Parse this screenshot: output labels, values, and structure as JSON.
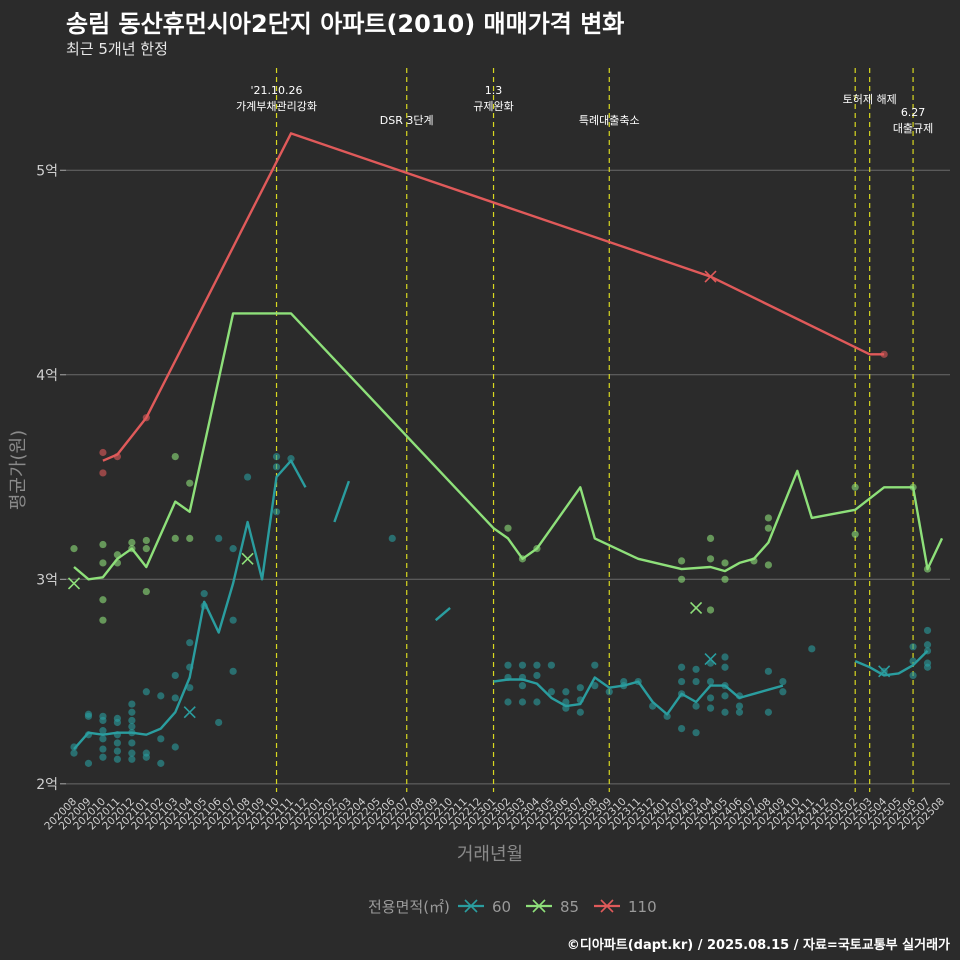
{
  "header": {
    "title": "송림 동산휴먼시아2단지 아파트(2010) 매매가격 변화",
    "subtitle": "최근 5개년 한정"
  },
  "caption": "©디아파트(dapt.kr) / 2025.08.15 / 자료=국토교통부 실거래가",
  "colors": {
    "s60": "#2a9d9f",
    "s85": "#8ee07a",
    "s110": "#e05a5a",
    "annotation": "#d8d820",
    "grid": "#6a6a6a",
    "background": "#2b2b2b"
  },
  "chart_data": {
    "type": "line",
    "xlabel": "거래년월",
    "ylabel": "평균가(원)",
    "x_categories": [
      "202008",
      "202009",
      "202010",
      "202011",
      "202012",
      "202101",
      "202102",
      "202103",
      "202104",
      "202105",
      "202106",
      "202107",
      "202108",
      "202109",
      "202110",
      "202111",
      "202112",
      "202201",
      "202202",
      "202203",
      "202204",
      "202205",
      "202206",
      "202207",
      "202208",
      "202209",
      "202210",
      "202211",
      "202212",
      "202301",
      "202302",
      "202303",
      "202304",
      "202305",
      "202306",
      "202307",
      "202308",
      "202309",
      "202310",
      "202311",
      "202312",
      "202401",
      "202402",
      "202403",
      "202404",
      "202405",
      "202406",
      "202407",
      "202408",
      "202409",
      "202410",
      "202411",
      "202412",
      "202501",
      "202502",
      "202503",
      "202504",
      "202505",
      "202506",
      "202507",
      "202508"
    ],
    "y_ticks": [
      {
        "value": 2,
        "label": "2억"
      },
      {
        "value": 3,
        "label": "3억"
      },
      {
        "value": 4,
        "label": "4억"
      },
      {
        "value": 5,
        "label": "5억"
      }
    ],
    "ylim": [
      1.96,
      5.5
    ],
    "legend": {
      "title": "전용면적(㎡)",
      "position": "bottom",
      "items": [
        "60",
        "85",
        "110"
      ]
    },
    "annotations": [
      {
        "x": "202110",
        "lines": [
          "'21.10.26",
          "가계부채관리강화"
        ]
      },
      {
        "x": "202207",
        "lines": [
          "DSR 3단계"
        ]
      },
      {
        "x": "202301",
        "lines": [
          "1.3",
          "규제완화"
        ]
      },
      {
        "x": "202309",
        "lines": [
          "특례대출축소"
        ]
      },
      {
        "x": "202502",
        "lines": []
      },
      {
        "x": "202503",
        "lines": [
          "토허제 해제"
        ]
      },
      {
        "x": "202506",
        "lines": [
          "6.27",
          "대출규제"
        ]
      }
    ],
    "series": [
      {
        "name": "60",
        "segments": [
          [
            [
              "202008",
              2.17
            ],
            [
              "202009",
              2.25
            ],
            [
              "202010",
              2.24
            ],
            [
              "202011",
              2.25
            ],
            [
              "202012",
              2.25
            ],
            [
              "202101",
              2.24
            ],
            [
              "202102",
              2.27
            ],
            [
              "202103",
              2.35
            ],
            [
              "202104",
              2.52
            ],
            [
              "202105",
              2.89
            ],
            [
              "202106",
              2.74
            ],
            [
              "202107",
              2.98
            ],
            [
              "202108",
              3.28
            ],
            [
              "202109",
              3.0
            ],
            [
              "202110",
              3.5
            ],
            [
              "202111",
              3.58
            ],
            [
              "202112",
              3.45
            ]
          ],
          [
            [
              "202202",
              3.28
            ],
            [
              "202203",
              3.48
            ]
          ],
          [
            [
              "202209",
              2.8
            ],
            [
              "202210",
              2.86
            ]
          ],
          [
            [
              "202301",
              2.5
            ],
            [
              "202302",
              2.51
            ],
            [
              "202303",
              2.51
            ],
            [
              "202304",
              2.49
            ],
            [
              "202305",
              2.42
            ],
            [
              "202306",
              2.38
            ],
            [
              "202307",
              2.39
            ],
            [
              "202308",
              2.52
            ],
            [
              "202309",
              2.47
            ],
            [
              "202310",
              2.48
            ],
            [
              "202311",
              2.5
            ],
            [
              "202312",
              2.4
            ],
            [
              "202401",
              2.34
            ],
            [
              "202402",
              2.44
            ],
            [
              "202403",
              2.4
            ],
            [
              "202404",
              2.48
            ],
            [
              "202405",
              2.48
            ],
            [
              "202406",
              2.42
            ],
            [
              "202407",
              2.44
            ],
            [
              "202408",
              2.46
            ],
            [
              "202409",
              2.48
            ]
          ],
          [
            [
              "202502",
              2.6
            ],
            [
              "202503",
              2.57
            ],
            [
              "202504",
              2.53
            ],
            [
              "202505",
              2.54
            ],
            [
              "202506",
              2.58
            ],
            [
              "202507",
              2.65
            ]
          ]
        ],
        "points": [
          [
            "202008",
            2.15
          ],
          [
            "202008",
            2.18
          ],
          [
            "202009",
            2.1
          ],
          [
            "202009",
            2.24
          ],
          [
            "202009",
            2.33
          ],
          [
            "202009",
            2.34
          ],
          [
            "202010",
            2.13
          ],
          [
            "202010",
            2.17
          ],
          [
            "202010",
            2.22
          ],
          [
            "202010",
            2.26
          ],
          [
            "202010",
            2.31
          ],
          [
            "202010",
            2.33
          ],
          [
            "202011",
            2.12
          ],
          [
            "202011",
            2.16
          ],
          [
            "202011",
            2.2
          ],
          [
            "202011",
            2.24
          ],
          [
            "202011",
            2.3
          ],
          [
            "202011",
            2.32
          ],
          [
            "202012",
            2.12
          ],
          [
            "202012",
            2.15
          ],
          [
            "202012",
            2.2
          ],
          [
            "202012",
            2.25
          ],
          [
            "202012",
            2.28
          ],
          [
            "202012",
            2.31
          ],
          [
            "202012",
            2.35
          ],
          [
            "202012",
            2.39
          ],
          [
            "202101",
            2.13
          ],
          [
            "202101",
            2.15
          ],
          [
            "202101",
            2.45
          ],
          [
            "202102",
            2.1
          ],
          [
            "202102",
            2.22
          ],
          [
            "202102",
            2.43
          ],
          [
            "202103",
            2.18
          ],
          [
            "202103",
            2.42
          ],
          [
            "202103",
            2.53
          ],
          [
            "202104",
            2.47
          ],
          [
            "202104",
            2.57
          ],
          [
            "202104",
            2.69
          ],
          [
            "202105",
            2.87
          ],
          [
            "202105",
            2.93
          ],
          [
            "202106",
            2.3
          ],
          [
            "202106",
            3.2
          ],
          [
            "202107",
            2.55
          ],
          [
            "202107",
            2.8
          ],
          [
            "202107",
            3.15
          ],
          [
            "202108",
            3.5
          ],
          [
            "202110",
            3.33
          ],
          [
            "202110",
            3.55
          ],
          [
            "202110",
            3.6
          ],
          [
            "202111",
            3.59
          ],
          [
            "202206",
            3.2
          ],
          [
            "202302",
            2.4
          ],
          [
            "202302",
            2.52
          ],
          [
            "202302",
            2.58
          ],
          [
            "202303",
            2.4
          ],
          [
            "202303",
            2.48
          ],
          [
            "202303",
            2.52
          ],
          [
            "202303",
            2.58
          ],
          [
            "202304",
            2.4
          ],
          [
            "202304",
            2.53
          ],
          [
            "202304",
            2.58
          ],
          [
            "202305",
            2.45
          ],
          [
            "202305",
            2.58
          ],
          [
            "202306",
            2.37
          ],
          [
            "202306",
            2.4
          ],
          [
            "202306",
            2.45
          ],
          [
            "202307",
            2.35
          ],
          [
            "202307",
            2.41
          ],
          [
            "202307",
            2.47
          ],
          [
            "202308",
            2.48
          ],
          [
            "202308",
            2.58
          ],
          [
            "202309",
            2.45
          ],
          [
            "202310",
            2.48
          ],
          [
            "202310",
            2.5
          ],
          [
            "202311",
            2.5
          ],
          [
            "202312",
            2.38
          ],
          [
            "202401",
            2.33
          ],
          [
            "202402",
            2.27
          ],
          [
            "202402",
            2.44
          ],
          [
            "202402",
            2.5
          ],
          [
            "202402",
            2.57
          ],
          [
            "202403",
            2.25
          ],
          [
            "202403",
            2.38
          ],
          [
            "202403",
            2.5
          ],
          [
            "202403",
            2.56
          ],
          [
            "202404",
            2.37
          ],
          [
            "202404",
            2.42
          ],
          [
            "202404",
            2.5
          ],
          [
            "202404",
            2.59
          ],
          [
            "202405",
            2.35
          ],
          [
            "202405",
            2.43
          ],
          [
            "202405",
            2.48
          ],
          [
            "202405",
            2.57
          ],
          [
            "202405",
            2.62
          ],
          [
            "202406",
            2.35
          ],
          [
            "202406",
            2.38
          ],
          [
            "202406",
            2.43
          ],
          [
            "202408",
            2.35
          ],
          [
            "202408",
            2.55
          ],
          [
            "202409",
            2.45
          ],
          [
            "202409",
            2.5
          ],
          [
            "202411",
            2.66
          ],
          [
            "202504",
            2.55
          ],
          [
            "202506",
            2.53
          ],
          [
            "202506",
            2.6
          ],
          [
            "202506",
            2.67
          ],
          [
            "202507",
            2.57
          ],
          [
            "202507",
            2.59
          ],
          [
            "202507",
            2.65
          ],
          [
            "202507",
            2.68
          ],
          [
            "202507",
            2.75
          ]
        ],
        "cross_points": [
          [
            "202104",
            2.35
          ],
          [
            "202404",
            2.61
          ],
          [
            "202504",
            2.55
          ]
        ]
      },
      {
        "name": "85",
        "segments": [
          [
            [
              "202008",
              3.06
            ],
            [
              "202009",
              3.0
            ],
            [
              "202010",
              3.01
            ],
            [
              "202011",
              3.1
            ],
            [
              "202012",
              3.15
            ],
            [
              "202101",
              3.06
            ],
            [
              "202103",
              3.38
            ],
            [
              "202104",
              3.33
            ],
            [
              "202107",
              4.3
            ],
            [
              "202111",
              4.3
            ],
            [
              "202301",
              3.25
            ],
            [
              "202302",
              3.2
            ],
            [
              "202303",
              3.1
            ],
            [
              "202304",
              3.15
            ],
            [
              "202307",
              3.45
            ],
            [
              "202308",
              3.2
            ],
            [
              "202311",
              3.1
            ],
            [
              "202402",
              3.05
            ],
            [
              "202404",
              3.06
            ],
            [
              "202405",
              3.04
            ],
            [
              "202406",
              3.08
            ],
            [
              "202407",
              3.1
            ],
            [
              "202408",
              3.18
            ],
            [
              "202410",
              3.53
            ],
            [
              "202411",
              3.3
            ],
            [
              "202502",
              3.34
            ],
            [
              "202504",
              3.45
            ],
            [
              "202506",
              3.45
            ],
            [
              "202507",
              3.05
            ],
            [
              "202508",
              3.2
            ]
          ]
        ],
        "points": [
          [
            "202008",
            3.15
          ],
          [
            "202010",
            2.8
          ],
          [
            "202010",
            2.9
          ],
          [
            "202010",
            3.08
          ],
          [
            "202010",
            3.17
          ],
          [
            "202011",
            3.08
          ],
          [
            "202011",
            3.12
          ],
          [
            "202012",
            3.15
          ],
          [
            "202012",
            3.18
          ],
          [
            "202101",
            2.94
          ],
          [
            "202101",
            3.15
          ],
          [
            "202101",
            3.19
          ],
          [
            "202103",
            3.2
          ],
          [
            "202103",
            3.6
          ],
          [
            "202104",
            3.2
          ],
          [
            "202104",
            3.47
          ],
          [
            "202302",
            3.25
          ],
          [
            "202303",
            3.1
          ],
          [
            "202304",
            3.15
          ],
          [
            "202402",
            3.0
          ],
          [
            "202402",
            3.09
          ],
          [
            "202404",
            2.85
          ],
          [
            "202404",
            3.1
          ],
          [
            "202404",
            3.2
          ],
          [
            "202405",
            3.0
          ],
          [
            "202405",
            3.08
          ],
          [
            "202407",
            3.09
          ],
          [
            "202408",
            3.07
          ],
          [
            "202408",
            3.25
          ],
          [
            "202408",
            3.3
          ],
          [
            "202502",
            3.22
          ],
          [
            "202502",
            3.45
          ],
          [
            "202506",
            3.45
          ],
          [
            "202507",
            3.05
          ]
        ],
        "cross_points": [
          [
            "202008",
            2.98
          ],
          [
            "202108",
            3.1
          ],
          [
            "202403",
            2.86
          ]
        ]
      },
      {
        "name": "110",
        "segments": [
          [
            [
              "202010",
              3.58
            ],
            [
              "202011",
              3.61
            ],
            [
              "202101",
              3.79
            ],
            [
              "202111",
              5.18
            ],
            [
              "202404",
              4.48
            ],
            [
              "202503",
              4.1
            ],
            [
              "202504",
              4.1
            ]
          ]
        ],
        "points": [
          [
            "202010",
            3.52
          ],
          [
            "202010",
            3.62
          ],
          [
            "202011",
            3.6
          ],
          [
            "202101",
            3.79
          ],
          [
            "202504",
            4.1
          ]
        ],
        "cross_points": [
          [
            "202404",
            4.48
          ]
        ]
      }
    ]
  }
}
